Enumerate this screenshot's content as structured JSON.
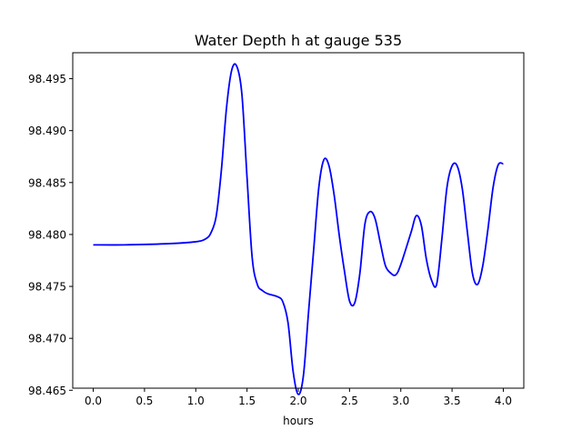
{
  "chart_data": {
    "type": "line",
    "title": "Water Depth h at gauge 535",
    "xlabel": "hours",
    "ylabel": "",
    "xlim": [
      -0.2,
      4.2
    ],
    "ylim": [
      98.4652,
      98.4975
    ],
    "xticks": [
      0.0,
      0.5,
      1.0,
      1.5,
      2.0,
      2.5,
      3.0,
      3.5,
      4.0
    ],
    "xtick_labels": [
      "0.0",
      "0.5",
      "1.0",
      "1.5",
      "2.0",
      "2.5",
      "3.0",
      "3.5",
      "4.0"
    ],
    "yticks": [
      98.465,
      98.47,
      98.475,
      98.48,
      98.485,
      98.49,
      98.495
    ],
    "ytick_labels": [
      "98.465",
      "98.470",
      "98.475",
      "98.480",
      "98.485",
      "98.490",
      "98.495"
    ],
    "grid": false,
    "legend": "none",
    "series": [
      {
        "color": "#0000ff",
        "x": [
          0.0,
          0.3,
          0.7,
          1.0,
          1.1,
          1.15,
          1.2,
          1.25,
          1.3,
          1.35,
          1.4,
          1.45,
          1.5,
          1.55,
          1.6,
          1.65,
          1.7,
          1.8,
          1.85,
          1.9,
          1.95,
          2.0,
          2.05,
          2.1,
          2.15,
          2.2,
          2.25,
          2.3,
          2.35,
          2.4,
          2.45,
          2.5,
          2.55,
          2.6,
          2.65,
          2.7,
          2.75,
          2.8,
          2.85,
          2.9,
          2.95,
          3.0,
          3.1,
          3.15,
          3.2,
          3.25,
          3.3,
          3.35,
          3.4,
          3.45,
          3.5,
          3.55,
          3.6,
          3.65,
          3.7,
          3.75,
          3.8,
          3.85,
          3.9,
          3.95,
          4.0
        ],
        "y": [
          98.479,
          98.479,
          98.4791,
          98.4793,
          98.4796,
          98.4802,
          98.4818,
          98.4862,
          98.4922,
          98.4958,
          98.4962,
          98.4935,
          98.4855,
          98.4778,
          98.4752,
          98.4746,
          98.4743,
          98.474,
          98.4735,
          98.4715,
          98.4668,
          98.4646,
          98.4664,
          98.4725,
          98.4785,
          98.4845,
          98.4872,
          98.4866,
          98.4838,
          98.4799,
          98.4765,
          98.4736,
          98.4734,
          98.4762,
          98.481,
          98.4822,
          98.4815,
          98.4792,
          98.477,
          98.4763,
          98.4761,
          98.4771,
          98.4802,
          98.4818,
          98.4809,
          98.4776,
          98.4756,
          98.4752,
          98.4795,
          98.4845,
          98.4866,
          98.4866,
          98.4844,
          98.4802,
          98.4762,
          98.4752,
          98.477,
          98.4805,
          98.4845,
          98.4867,
          98.4868
        ]
      }
    ]
  }
}
